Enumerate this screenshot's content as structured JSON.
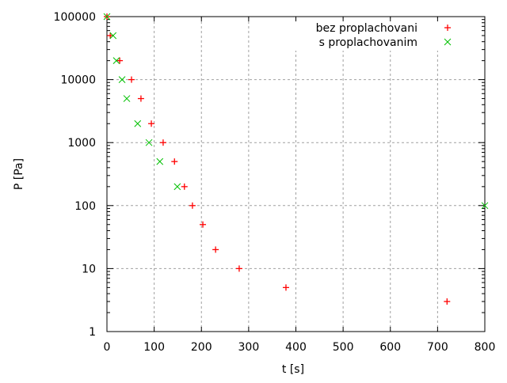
{
  "chart_data": {
    "type": "scatter",
    "title": "",
    "xlabel": "t [s]",
    "ylabel": "P [Pa]",
    "xlim": [
      0,
      800
    ],
    "ylim": [
      1,
      100000
    ],
    "yscale": "log",
    "grid": true,
    "legend_position": "top-right",
    "x_ticks": [
      "0",
      "100",
      "200",
      "300",
      "400",
      "500",
      "600",
      "700",
      "800"
    ],
    "y_ticks": [
      "1",
      "10",
      "100",
      "1000",
      "10000",
      "100000"
    ],
    "series": [
      {
        "name": "bez proplachovani",
        "marker": "plus",
        "color": "#ff0000",
        "points": [
          [
            0,
            100000
          ],
          [
            7,
            50000
          ],
          [
            27,
            20000
          ],
          [
            52,
            10000
          ],
          [
            72,
            5000
          ],
          [
            94,
            2000
          ],
          [
            119,
            1000
          ],
          [
            143,
            500
          ],
          [
            164,
            200
          ],
          [
            181,
            100
          ],
          [
            203,
            50
          ],
          [
            230,
            20
          ],
          [
            280,
            10
          ],
          [
            379,
            5
          ],
          [
            720,
            3
          ]
        ]
      },
      {
        "name": "s proplachovanim",
        "marker": "cross",
        "color": "#00c000",
        "points": [
          [
            0,
            100000
          ],
          [
            13,
            50000
          ],
          [
            20,
            20000
          ],
          [
            32,
            10000
          ],
          [
            42,
            5000
          ],
          [
            65,
            2000
          ],
          [
            89,
            1000
          ],
          [
            112,
            500
          ],
          [
            149,
            200
          ],
          [
            800,
            100
          ]
        ]
      }
    ]
  }
}
